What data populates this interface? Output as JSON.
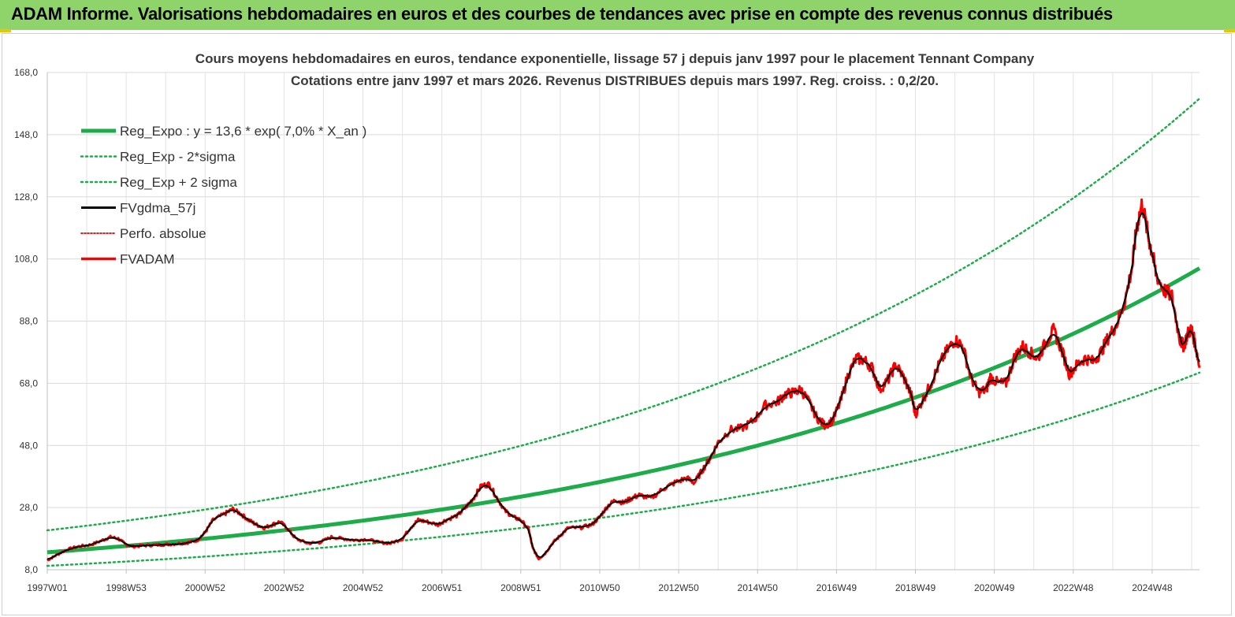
{
  "banner": {
    "title": "ADAM Informe. Valorisations hebdomadaires en euros et des courbes de tendances avec prise en compte des revenus connus distribués",
    "background": "#8fd46b",
    "accent": "#f2c200"
  },
  "chart_data": {
    "type": "line",
    "title": "Cours moyens hebdomadaires en euros, tendance exponentielle, lissage 57 j depuis janv 1997 pour le placement Tennant Company",
    "subtitle": "Cotations entre janv 1997 et mars 2026. Revenus DISTRIBUES depuis mars 1997. Reg. croiss. : 0,2/20.",
    "xlabel": "",
    "ylabel": "",
    "x_range": [
      1997.0,
      2026.2
    ],
    "ylim": [
      8,
      168
    ],
    "y_ticks": [
      "8,0",
      "28,0",
      "48,0",
      "68,0",
      "88,0",
      "108,0",
      "128,0",
      "148,0",
      "168,0"
    ],
    "x_ticks": [
      {
        "label": "1997W01",
        "x": 1997.0
      },
      {
        "label": "1998W53",
        "x": 1999.0
      },
      {
        "label": "2000W52",
        "x": 2001.0
      },
      {
        "label": "2002W52",
        "x": 2003.0
      },
      {
        "label": "2004W52",
        "x": 2005.0
      },
      {
        "label": "2006W51",
        "x": 2007.0
      },
      {
        "label": "2008W51",
        "x": 2009.0
      },
      {
        "label": "2010W50",
        "x": 2011.0
      },
      {
        "label": "2012W50",
        "x": 2013.0
      },
      {
        "label": "2014W50",
        "x": 2015.0
      },
      {
        "label": "2016W49",
        "x": 2017.0
      },
      {
        "label": "2018W49",
        "x": 2019.0
      },
      {
        "label": "2020W49",
        "x": 2021.0
      },
      {
        "label": "2022W48",
        "x": 2023.0
      },
      {
        "label": "2024W48",
        "x": 2025.0
      }
    ],
    "grid": true,
    "legend_position": "top-left",
    "regression": {
      "a": 13.6,
      "rate": 0.07,
      "x0": 1997.0,
      "lower_offset": -7.0,
      "upper_offset": 7.0
    },
    "series": [
      {
        "name": "Reg_Expo : y = 13,6 * exp( 7,0% *  X_an )",
        "style": "thick",
        "color": "#1eac4b"
      },
      {
        "name": "Reg_Exp - 2*sigma",
        "style": "dotted",
        "color": "#1eac4b"
      },
      {
        "name": "Reg_Exp + 2 sigma",
        "style": "dotted",
        "color": "#1eac4b"
      },
      {
        "name": "FVgdma_57j",
        "style": "solid",
        "color": "#000000"
      },
      {
        "name": "Perfo. absolue",
        "style": "dotted",
        "color": "#e00000"
      },
      {
        "name": "FVADAM",
        "style": "solid",
        "color": "#ff0000"
      }
    ],
    "fvadam_points": [
      [
        1997.0,
        11.0
      ],
      [
        1997.2,
        12.5
      ],
      [
        1997.5,
        14.5
      ],
      [
        1997.8,
        15.5
      ],
      [
        1998.1,
        16.0
      ],
      [
        1998.4,
        17.5
      ],
      [
        1998.6,
        18.5
      ],
      [
        1998.8,
        18.0
      ],
      [
        1999.0,
        16.0
      ],
      [
        1999.2,
        15.5
      ],
      [
        1999.5,
        15.8
      ],
      [
        1999.8,
        16.0
      ],
      [
        2000.1,
        16.2
      ],
      [
        2000.4,
        16.5
      ],
      [
        2000.6,
        16.8
      ],
      [
        2000.8,
        17.5
      ],
      [
        2001.0,
        20.0
      ],
      [
        2001.2,
        24.0
      ],
      [
        2001.5,
        26.0
      ],
      [
        2001.7,
        27.5
      ],
      [
        2001.9,
        26.0
      ],
      [
        2002.1,
        24.0
      ],
      [
        2002.3,
        22.5
      ],
      [
        2002.5,
        21.5
      ],
      [
        2002.7,
        22.5
      ],
      [
        2002.9,
        23.5
      ],
      [
        2003.1,
        21.0
      ],
      [
        2003.3,
        18.0
      ],
      [
        2003.6,
        16.5
      ],
      [
        2003.9,
        16.8
      ],
      [
        2004.2,
        18.5
      ],
      [
        2004.5,
        18.0
      ],
      [
        2004.8,
        17.5
      ],
      [
        2005.1,
        17.8
      ],
      [
        2005.4,
        16.8
      ],
      [
        2005.7,
        16.5
      ],
      [
        2006.0,
        18.0
      ],
      [
        2006.2,
        21.5
      ],
      [
        2006.4,
        24.0
      ],
      [
        2006.6,
        23.5
      ],
      [
        2006.9,
        22.5
      ],
      [
        2007.1,
        24.0
      ],
      [
        2007.4,
        25.5
      ],
      [
        2007.6,
        28.0
      ],
      [
        2007.8,
        31.0
      ],
      [
        2008.0,
        35.0
      ],
      [
        2008.2,
        35.5
      ],
      [
        2008.4,
        31.0
      ],
      [
        2008.6,
        27.0
      ],
      [
        2008.8,
        25.0
      ],
      [
        2009.0,
        24.0
      ],
      [
        2009.2,
        21.0
      ],
      [
        2009.3,
        15.0
      ],
      [
        2009.45,
        11.5
      ],
      [
        2009.6,
        13.0
      ],
      [
        2009.8,
        16.5
      ],
      [
        2010.0,
        19.0
      ],
      [
        2010.2,
        21.5
      ],
      [
        2010.5,
        21.5
      ],
      [
        2010.8,
        22.5
      ],
      [
        2011.0,
        25.0
      ],
      [
        2011.2,
        28.5
      ],
      [
        2011.4,
        30.5
      ],
      [
        2011.6,
        29.5
      ],
      [
        2011.8,
        31.0
      ],
      [
        2012.0,
        32.0
      ],
      [
        2012.3,
        31.0
      ],
      [
        2012.6,
        34.0
      ],
      [
        2012.9,
        36.0
      ],
      [
        2013.2,
        37.5
      ],
      [
        2013.4,
        36.0
      ],
      [
        2013.6,
        40.0
      ],
      [
        2013.8,
        44.0
      ],
      [
        2014.0,
        49.0
      ],
      [
        2014.3,
        53.0
      ],
      [
        2014.6,
        53.5
      ],
      [
        2014.9,
        56.0
      ],
      [
        2015.2,
        61.0
      ],
      [
        2015.5,
        62.0
      ],
      [
        2015.7,
        64.5
      ],
      [
        2015.9,
        65.0
      ],
      [
        2016.1,
        66.0
      ],
      [
        2016.3,
        62.0
      ],
      [
        2016.5,
        57.0
      ],
      [
        2016.7,
        54.5
      ],
      [
        2016.9,
        56.0
      ],
      [
        2017.1,
        62.0
      ],
      [
        2017.3,
        71.0
      ],
      [
        2017.5,
        76.0
      ],
      [
        2017.7,
        75.5
      ],
      [
        2017.9,
        73.0
      ],
      [
        2018.1,
        66.0
      ],
      [
        2018.3,
        69.0
      ],
      [
        2018.5,
        74.0
      ],
      [
        2018.7,
        70.0
      ],
      [
        2018.9,
        64.0
      ],
      [
        2019.0,
        58.0
      ],
      [
        2019.2,
        63.0
      ],
      [
        2019.4,
        68.0
      ],
      [
        2019.6,
        74.0
      ],
      [
        2019.8,
        78.5
      ],
      [
        2020.0,
        82.0
      ],
      [
        2020.2,
        80.0
      ],
      [
        2020.4,
        70.0
      ],
      [
        2020.6,
        65.0
      ],
      [
        2020.8,
        66.0
      ],
      [
        2020.9,
        70.0
      ],
      [
        2021.1,
        68.0
      ],
      [
        2021.3,
        68.0
      ],
      [
        2021.5,
        76.0
      ],
      [
        2021.7,
        80.0
      ],
      [
        2021.9,
        78.0
      ],
      [
        2022.1,
        76.0
      ],
      [
        2022.3,
        81.0
      ],
      [
        2022.5,
        85.0
      ],
      [
        2022.7,
        79.0
      ],
      [
        2022.9,
        71.0
      ],
      [
        2023.1,
        74.0
      ],
      [
        2023.3,
        76.0
      ],
      [
        2023.5,
        75.0
      ],
      [
        2023.7,
        78.0
      ],
      [
        2023.9,
        83.0
      ],
      [
        2024.1,
        87.0
      ],
      [
        2024.3,
        94.0
      ],
      [
        2024.5,
        106.0
      ],
      [
        2024.6,
        118.0
      ],
      [
        2024.75,
        126.0
      ],
      [
        2024.9,
        115.0
      ],
      [
        2025.0,
        110.0
      ],
      [
        2025.1,
        103.0
      ],
      [
        2025.3,
        98.0
      ],
      [
        2025.5,
        96.0
      ],
      [
        2025.7,
        82.0
      ],
      [
        2025.8,
        80.0
      ],
      [
        2025.9,
        84.0
      ],
      [
        2026.0,
        85.5
      ],
      [
        2026.1,
        80.0
      ],
      [
        2026.2,
        73.0
      ]
    ]
  }
}
